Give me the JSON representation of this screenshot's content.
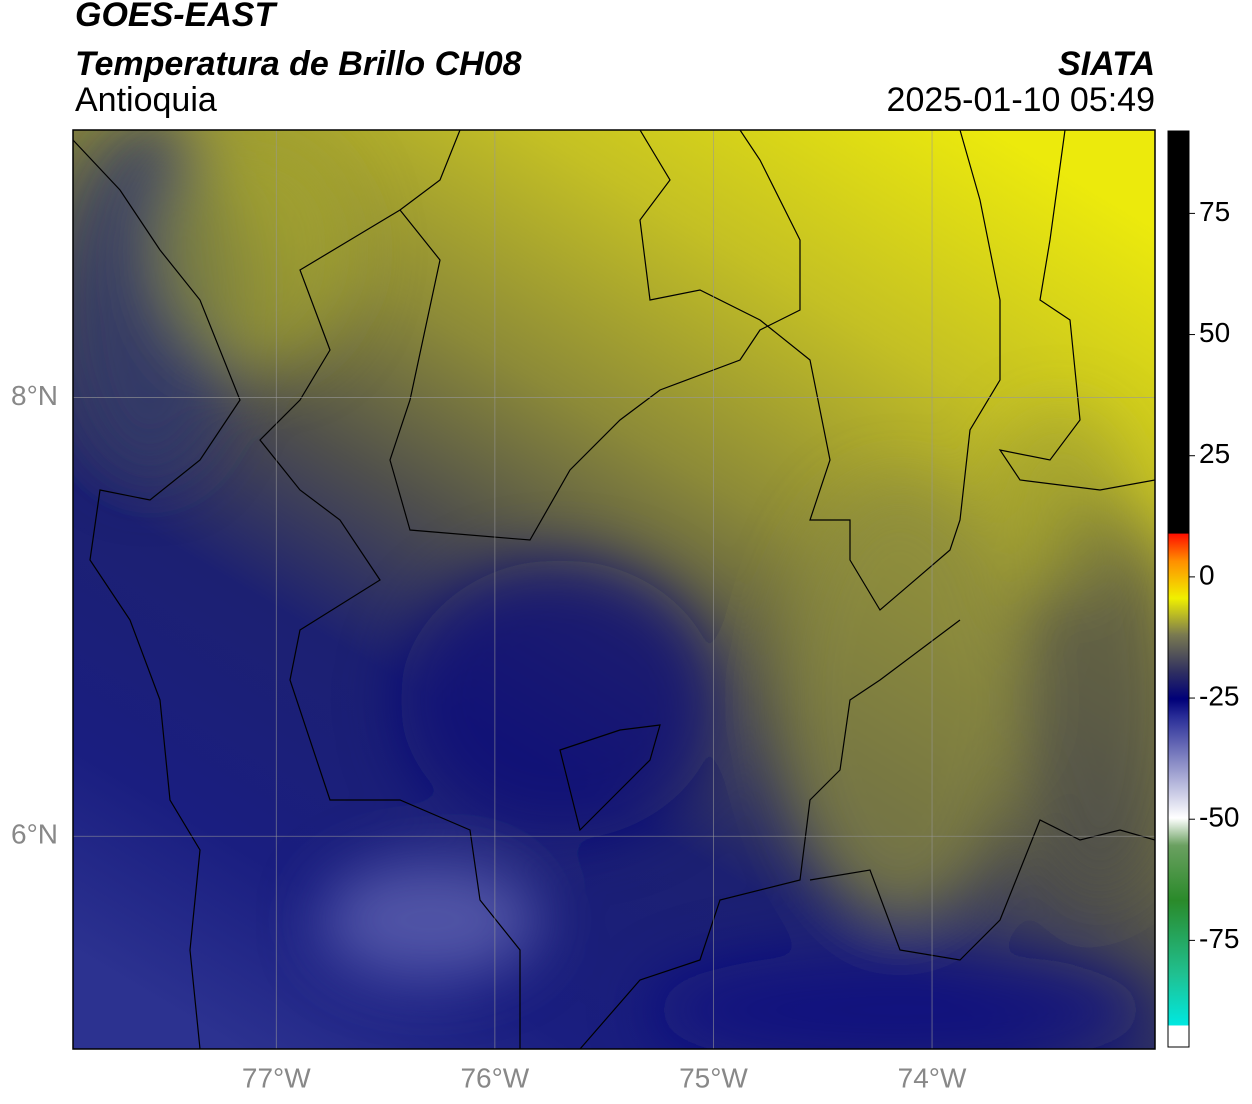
{
  "header": {
    "title": "GOES-EAST",
    "product": "Temperatura de Brillo CH08",
    "region": "Antioquia",
    "source": "SIATA",
    "timestamp": "2025-01-10 05:49"
  },
  "map": {
    "lon_range": [
      -77.93,
      -72.98
    ],
    "lat_range": [
      5.03,
      9.22
    ],
    "lon_ticks": [
      {
        "value": -77,
        "label": "77°W"
      },
      {
        "value": -76,
        "label": "76°W"
      },
      {
        "value": -75,
        "label": "75°W"
      },
      {
        "value": -74,
        "label": "74°W"
      }
    ],
    "lat_ticks": [
      {
        "value": 8,
        "label": "8°N"
      },
      {
        "value": 6,
        "label": "6°N"
      }
    ],
    "grid": true
  },
  "colorbar": {
    "range": [
      -97,
      92
    ],
    "ticks": [
      75,
      50,
      25,
      0,
      -25,
      -50,
      -75
    ]
  }
}
